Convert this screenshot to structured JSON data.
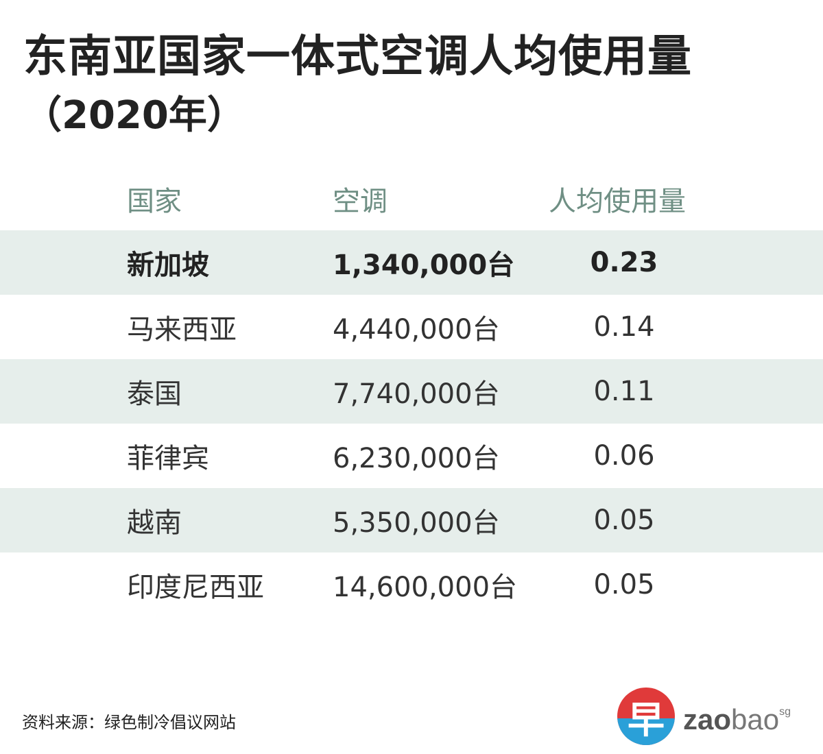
{
  "title": "东南亚国家一体式空调人均使用量",
  "subtitle": "（2020年）",
  "table": {
    "headers": [
      "国家",
      "空调",
      "人均使用量"
    ],
    "rows": [
      {
        "country": "新加坡",
        "units": "1,340,000台",
        "per_capita": "0.23",
        "highlight": true
      },
      {
        "country": "马来西亚",
        "units": "4,440,000台",
        "per_capita": "0.14",
        "highlight": false
      },
      {
        "country": "泰国",
        "units": "7,740,000台",
        "per_capita": "0.11",
        "highlight": false
      },
      {
        "country": "菲律宾",
        "units": "6,230,000台",
        "per_capita": "0.06",
        "highlight": false
      },
      {
        "country": "越南",
        "units": "5,350,000台",
        "per_capita": "0.05",
        "highlight": false
      },
      {
        "country": "印度尼西亚",
        "units": "14,600,000台",
        "per_capita": "0.05",
        "highlight": false
      }
    ]
  },
  "source": "资料来源：绿色制冷倡议网站",
  "logo": {
    "glyph": "早",
    "zao": "zao",
    "bao": "bao",
    "sg": "sg"
  },
  "colors": {
    "shaded_row": "#e6eeeb",
    "header_text": "#6f8f84",
    "logo_red": "#e03a3a",
    "logo_blue": "#2aa0d8"
  },
  "chart_data": {
    "type": "table",
    "title": "东南亚国家一体式空调人均使用量",
    "subtitle": "（2020年）",
    "columns": [
      "国家",
      "空调",
      "人均使用量"
    ],
    "rows": [
      [
        "新加坡",
        "1,340,000台",
        0.23
      ],
      [
        "马来西亚",
        "4,440,000台",
        0.14
      ],
      [
        "泰国",
        "7,740,000台",
        0.11
      ],
      [
        "菲律宾",
        "6,230,000台",
        0.06
      ],
      [
        "越南",
        "5,350,000台",
        0.05
      ],
      [
        "印度尼西亚",
        "14,600,000台",
        0.05
      ]
    ]
  }
}
